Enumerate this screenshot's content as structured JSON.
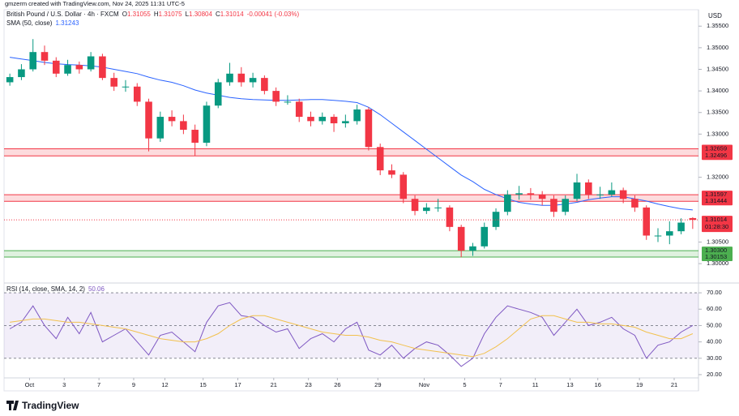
{
  "watermark": "gmzerm created with TradingView.com, Nov 24, 2025 11:31 UTC-5",
  "chart_data": {
    "type": "candlestick",
    "title": "British Pound / U.S. Dollar · 4h · FXCM",
    "ohlc_legend": [
      {
        "label": "O",
        "value": "1.31055"
      },
      {
        "label": "H",
        "value": "1.31075"
      },
      {
        "label": "L",
        "value": "1.30804"
      },
      {
        "label": "C",
        "value": "1.31014"
      }
    ],
    "change": "-0.00041 (-0.03%)",
    "currency": "USD",
    "xlim": [
      -0.5,
      59.5
    ],
    "xticks": [
      {
        "value": 1.7,
        "label": "Oct"
      },
      {
        "value": 4.7,
        "label": "3"
      },
      {
        "value": 7.7,
        "label": "7"
      },
      {
        "value": 10.7,
        "label": "9"
      },
      {
        "value": 13.4,
        "label": "12"
      },
      {
        "value": 16.7,
        "label": "15"
      },
      {
        "value": 19.7,
        "label": "17"
      },
      {
        "value": 22.8,
        "label": "21"
      },
      {
        "value": 25.8,
        "label": "23"
      },
      {
        "value": 28.3,
        "label": "26"
      },
      {
        "value": 31.8,
        "label": "29"
      },
      {
        "value": 35.8,
        "label": "Nov"
      },
      {
        "value": 39.3,
        "label": "5"
      },
      {
        "value": 42.4,
        "label": "7"
      },
      {
        "value": 45.4,
        "label": "11"
      },
      {
        "value": 48.4,
        "label": "13"
      },
      {
        "value": 50.8,
        "label": "16"
      },
      {
        "value": 54.4,
        "label": "19"
      },
      {
        "value": 57.4,
        "label": "21"
      }
    ],
    "ylim": [
      1.2957,
      1.3588
    ],
    "yticks": [
      {
        "value": 1.355,
        "label": "1.35500"
      },
      {
        "value": 1.35,
        "label": "1.35000"
      },
      {
        "value": 1.345,
        "label": "1.34500"
      },
      {
        "value": 1.34,
        "label": "1.34000"
      },
      {
        "value": 1.335,
        "label": "1.33500"
      },
      {
        "value": 1.33,
        "label": "1.33000"
      },
      {
        "value": 1.32,
        "label": "1.32000"
      },
      {
        "value": 1.305,
        "label": "1.30500"
      },
      {
        "value": 1.3,
        "label": "1.30000"
      }
    ],
    "open": [
      1.342,
      1.3432,
      1.345,
      1.349,
      1.347,
      1.344,
      1.346,
      1.345,
      1.348,
      1.343,
      1.341,
      1.341,
      1.3375,
      1.329,
      1.334,
      1.333,
      1.331,
      1.328,
      1.3366,
      1.342,
      1.344,
      1.342,
      1.343,
      1.34,
      1.3375,
      1.3375,
      1.334,
      1.333,
      1.334,
      1.3325,
      1.333,
      1.3357,
      1.327,
      1.3216,
      1.3206,
      1.315,
      1.3122,
      1.313,
      1.313,
      1.3085,
      1.303,
      1.304,
      1.3085,
      1.312,
      1.316,
      1.3163,
      1.316,
      1.315,
      1.312,
      1.315,
      1.3188,
      1.316,
      1.316,
      1.317,
      1.315,
      1.313,
      1.3065,
      1.3065,
      1.3075,
      1.31055
    ],
    "high": [
      1.344,
      1.3462,
      1.352,
      1.3505,
      1.3478,
      1.3472,
      1.3468,
      1.349,
      1.3486,
      1.3442,
      1.3425,
      1.3418,
      1.3382,
      1.3352,
      1.3355,
      1.3345,
      1.3322,
      1.3375,
      1.3428,
      1.3465,
      1.3455,
      1.3442,
      1.3436,
      1.3408,
      1.339,
      1.3382,
      1.3352,
      1.335,
      1.3346,
      1.3345,
      1.3368,
      1.3362,
      1.3278,
      1.323,
      1.3212,
      1.3158,
      1.314,
      1.315,
      1.3135,
      1.309,
      1.3048,
      1.3095,
      1.3128,
      1.317,
      1.318,
      1.3175,
      1.3168,
      1.3158,
      1.3158,
      1.3208,
      1.3195,
      1.3178,
      1.3188,
      1.3176,
      1.3158,
      1.3135,
      1.3082,
      1.3098,
      1.3105,
      1.31075
    ],
    "low": [
      1.3412,
      1.3425,
      1.3445,
      1.346,
      1.3432,
      1.3435,
      1.344,
      1.3445,
      1.3425,
      1.34,
      1.3398,
      1.3365,
      1.326,
      1.3282,
      1.3318,
      1.33,
      1.325,
      1.3272,
      1.336,
      1.3412,
      1.341,
      1.3408,
      1.3392,
      1.3365,
      1.3368,
      1.3328,
      1.3318,
      1.3322,
      1.3305,
      1.3315,
      1.3322,
      1.3262,
      1.3205,
      1.3198,
      1.314,
      1.3112,
      1.3115,
      1.312,
      1.3075,
      1.3015,
      1.3018,
      1.3035,
      1.3078,
      1.3112,
      1.3148,
      1.3148,
      1.3135,
      1.3108,
      1.3112,
      1.3145,
      1.315,
      1.315,
      1.3155,
      1.314,
      1.312,
      1.3055,
      1.305,
      1.3045,
      1.3068,
      1.30804
    ],
    "close": [
      1.3432,
      1.345,
      1.349,
      1.347,
      1.344,
      1.346,
      1.345,
      1.348,
      1.343,
      1.341,
      1.341,
      1.3375,
      1.329,
      1.334,
      1.333,
      1.331,
      1.328,
      1.3366,
      1.342,
      1.344,
      1.342,
      1.343,
      1.34,
      1.3375,
      1.3375,
      1.334,
      1.333,
      1.334,
      1.3325,
      1.333,
      1.3357,
      1.327,
      1.3216,
      1.3206,
      1.315,
      1.3122,
      1.313,
      1.313,
      1.3085,
      1.303,
      1.304,
      1.3085,
      1.312,
      1.316,
      1.3163,
      1.316,
      1.315,
      1.312,
      1.315,
      1.3188,
      1.316,
      1.316,
      1.317,
      1.315,
      1.313,
      1.3065,
      1.3065,
      1.3075,
      1.3095,
      1.31014
    ],
    "up_color": "#089981",
    "down_color": "#f23645",
    "last_price": 1.31014,
    "countdown": "01:28:30",
    "overlays": [
      {
        "name": "SMA (50, close)",
        "value_label": "1.31243",
        "color": "#2962ff",
        "values": [
          1.3478,
          1.3474,
          1.347,
          1.3466,
          1.3463,
          1.3461,
          1.346,
          1.3458,
          1.3455,
          1.345,
          1.3445,
          1.344,
          1.3432,
          1.3425,
          1.342,
          1.3412,
          1.3402,
          1.3395,
          1.339,
          1.3385,
          1.3382,
          1.338,
          1.3379,
          1.3378,
          1.3378,
          1.3379,
          1.338,
          1.338,
          1.3378,
          1.3376,
          1.3373,
          1.3362,
          1.3345,
          1.3325,
          1.3305,
          1.3285,
          1.3265,
          1.3245,
          1.3225,
          1.3205,
          1.319,
          1.3172,
          1.316,
          1.315,
          1.3142,
          1.3138,
          1.3135,
          1.3135,
          1.3138,
          1.3142,
          1.3148,
          1.3152,
          1.3155,
          1.3155,
          1.315,
          1.3145,
          1.3138,
          1.3132,
          1.3127,
          1.31243
        ]
      }
    ],
    "zones": [
      {
        "top": 1.32659,
        "bottom": 1.32496,
        "color": "#f23645"
      },
      {
        "top": 1.31597,
        "bottom": 1.31444,
        "color": "#f23645"
      },
      {
        "top": {
          "value": 1.303,
          "label": "1.30300"
        },
        "bottom": 1.30153,
        "color": "#4caf50"
      }
    ]
  },
  "rsi": {
    "name": "RSI (14, close, SMA, 14, 2)",
    "value_label": "50.06",
    "ylim": [
      18.5,
      74.5
    ],
    "yticks": [
      {
        "value": 70,
        "label": "70.00"
      },
      {
        "value": 60,
        "label": "60.00"
      },
      {
        "value": 50,
        "label": "50.00"
      },
      {
        "value": 40,
        "label": "40.00"
      },
      {
        "value": 30,
        "label": "30.00"
      },
      {
        "value": 20,
        "label": "20.00"
      }
    ],
    "levels": [
      70,
      50,
      30
    ],
    "color": "#7e57c2",
    "ma_color": "#f2c14e",
    "values": [
      48,
      52,
      62,
      50,
      42,
      55,
      45,
      58,
      40,
      44,
      48,
      40,
      32,
      44,
      46,
      40,
      34,
      52,
      62,
      64,
      56,
      55,
      50,
      46,
      48,
      36,
      42,
      45,
      40,
      48,
      52,
      35,
      32,
      38,
      30,
      36,
      40,
      38,
      32,
      25,
      30,
      45,
      55,
      62,
      60,
      58,
      55,
      44,
      52,
      60,
      50,
      52,
      55,
      48,
      44,
      30,
      38,
      40,
      46,
      50.06
    ],
    "ma_values": [
      52,
      53,
      54,
      54,
      53,
      52,
      52,
      51,
      50,
      49,
      48,
      46,
      44,
      42,
      41,
      40,
      40,
      42,
      45,
      50,
      54,
      56,
      56,
      54,
      52,
      50,
      48,
      46,
      45,
      44,
      44,
      43,
      41,
      40,
      38,
      36,
      35,
      34,
      33,
      32,
      31,
      33,
      37,
      42,
      48,
      54,
      56,
      56,
      54,
      52,
      52,
      51,
      51,
      50,
      49,
      46,
      44,
      42,
      42,
      45
    ]
  },
  "footer": "TradingView"
}
